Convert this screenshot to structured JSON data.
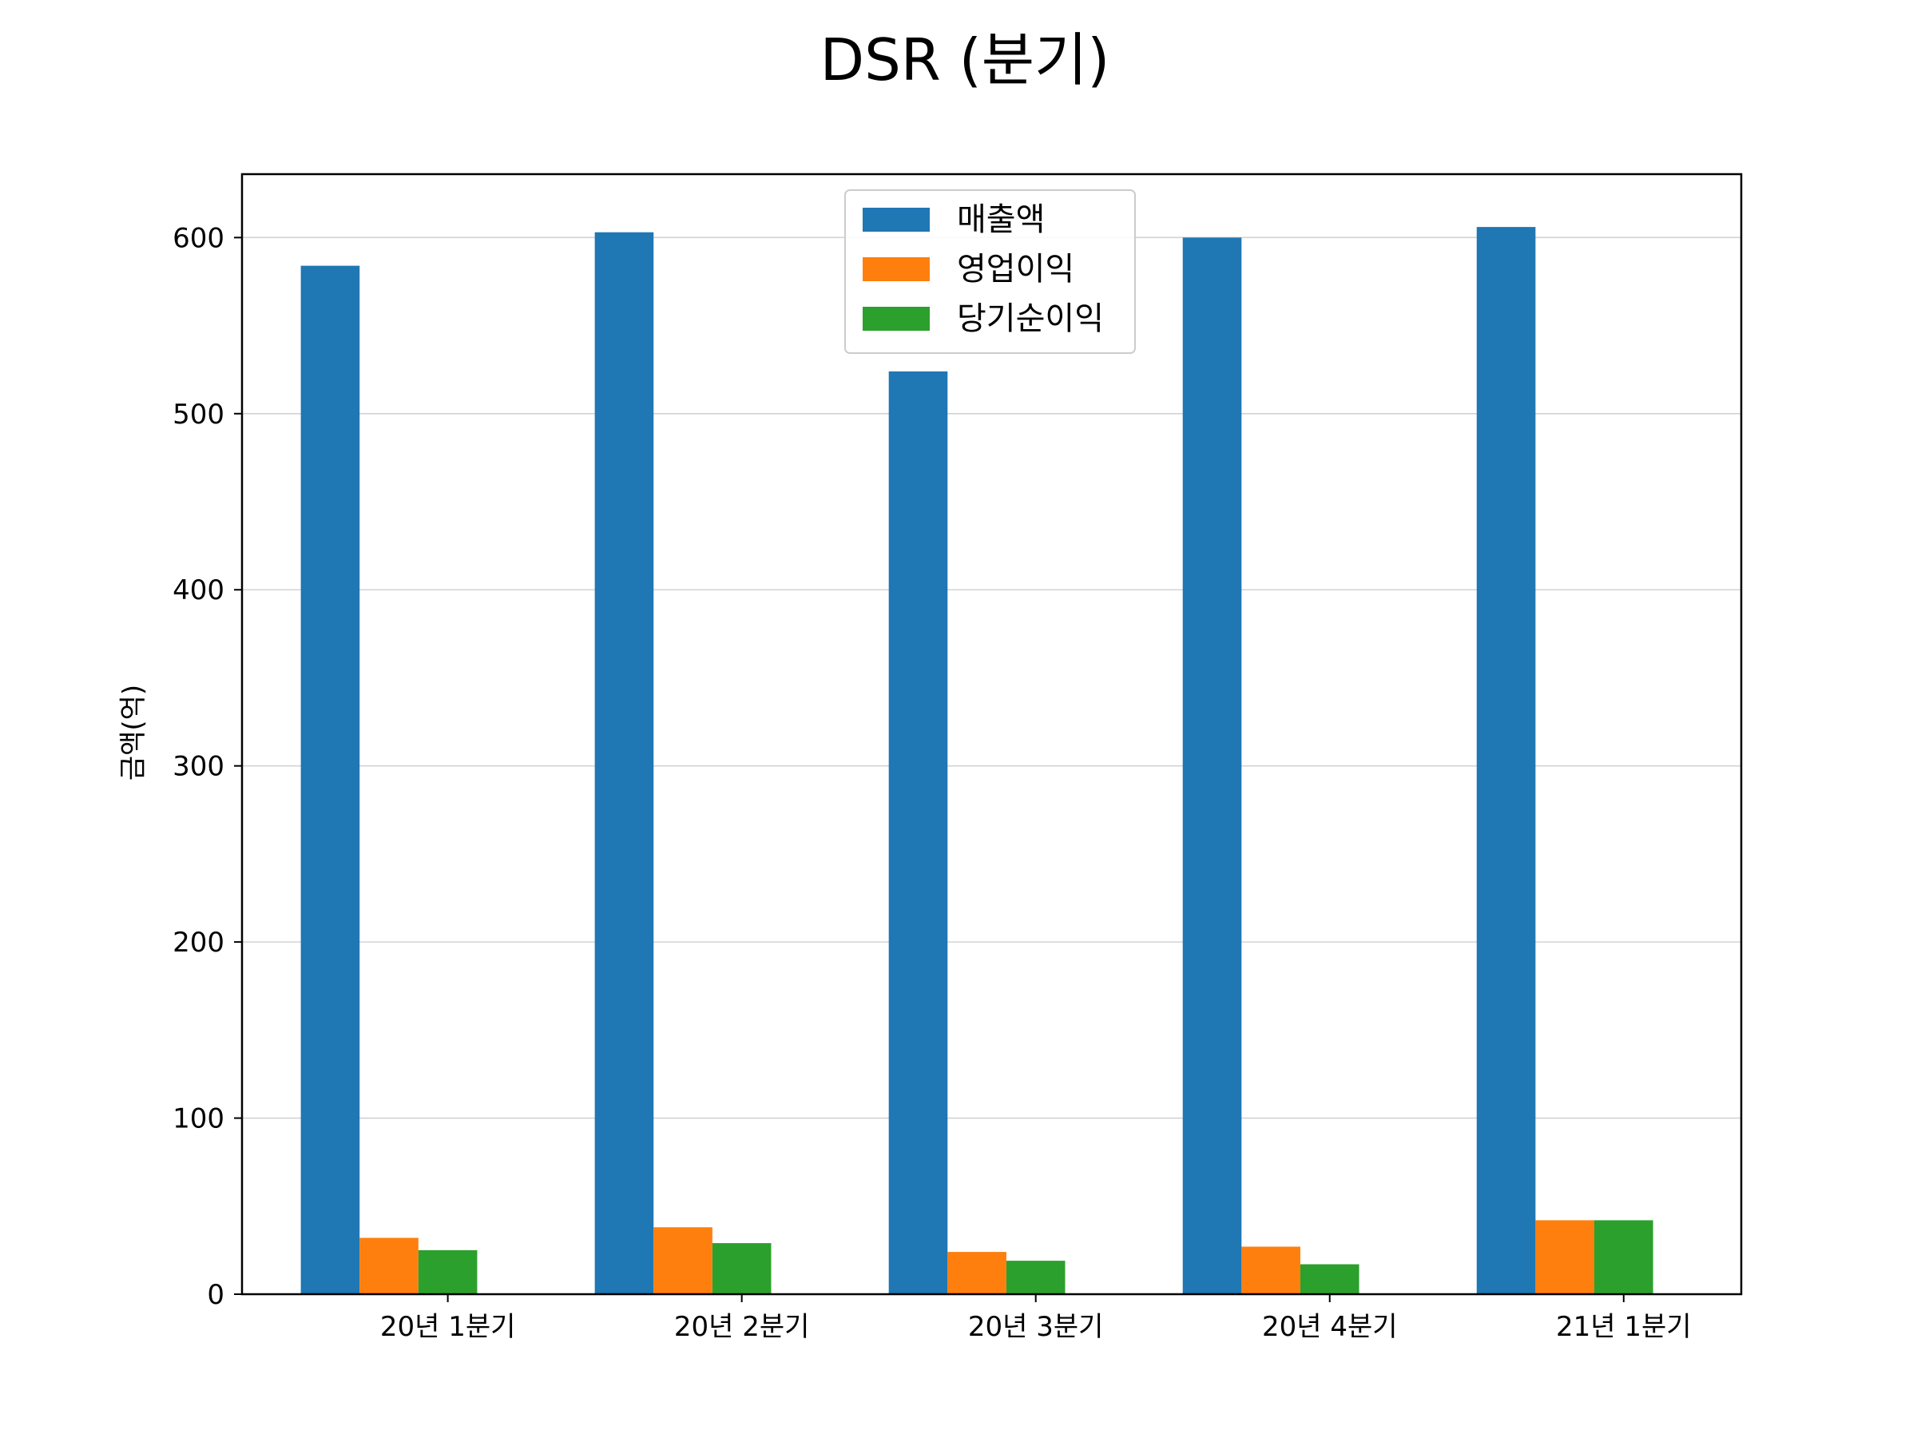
{
  "chart_data": {
    "type": "bar",
    "title": "DSR (분기)",
    "xlabel": "",
    "ylabel": "금액(억)",
    "categories": [
      "20년 1분기",
      "20년 2분기",
      "20년 3분기",
      "20년 4분기",
      "21년 1분기"
    ],
    "series": [
      {
        "name": "매출액",
        "color": "#1f77b4",
        "values": [
          584,
          603,
          524,
          600,
          606
        ]
      },
      {
        "name": "영업이익",
        "color": "#ff7f0e",
        "values": [
          32,
          38,
          24,
          27,
          42
        ]
      },
      {
        "name": "당기순이익",
        "color": "#2ca02c",
        "values": [
          25,
          29,
          19,
          17,
          42
        ]
      }
    ],
    "ylim": [
      0,
      636
    ],
    "yticks": [
      0,
      100,
      200,
      300,
      400,
      500,
      600
    ],
    "grid": "y",
    "legend_position": "top-center"
  }
}
